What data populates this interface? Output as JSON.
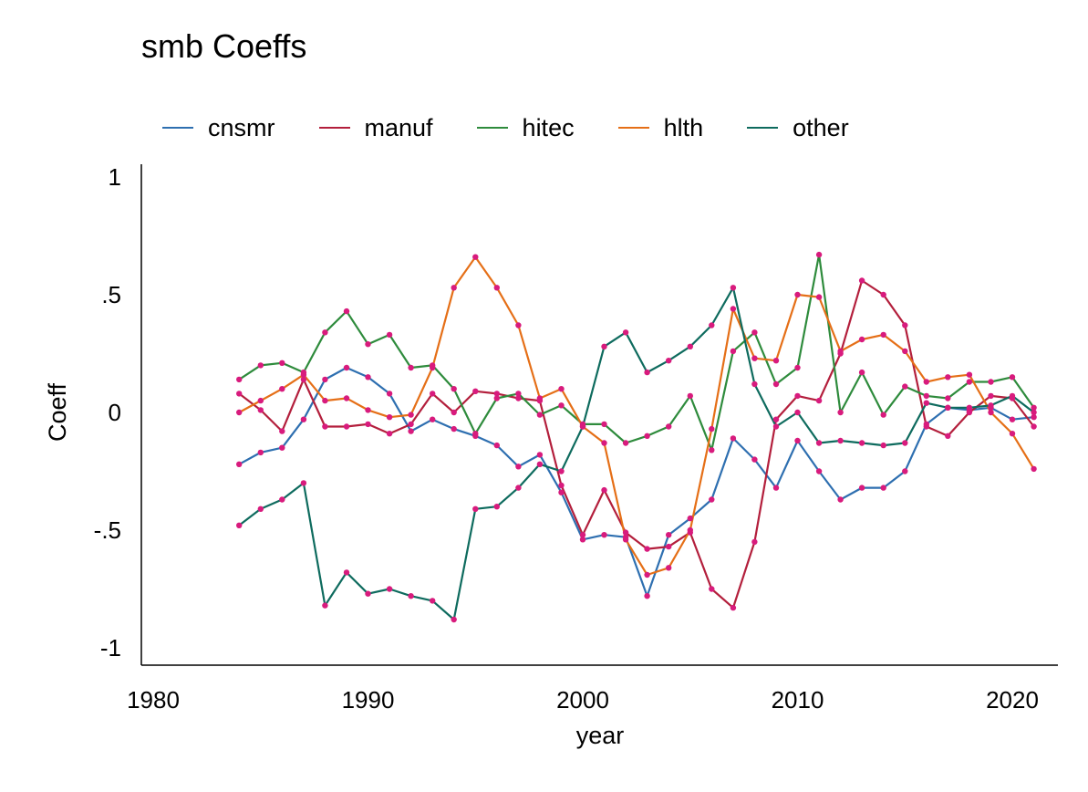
{
  "chart_data": {
    "type": "line",
    "title": "smb Coeffs",
    "xlabel": "year",
    "ylabel": "Coeff",
    "xlim": [
      1980,
      2021
    ],
    "ylim": [
      -1,
      1
    ],
    "x_ticks": [
      1980,
      1990,
      2000,
      2010,
      2020
    ],
    "y_ticks": [
      {
        "value": 1,
        "label": "1"
      },
      {
        "value": 0.5,
        "label": ".5"
      },
      {
        "value": 0,
        "label": "0"
      },
      {
        "value": -0.5,
        "label": "-.5"
      },
      {
        "value": -1,
        "label": "-1"
      }
    ],
    "legend_position": "top",
    "marker_color": "#d81b7d",
    "grid": false,
    "x": [
      1984,
      1985,
      1986,
      1987,
      1988,
      1989,
      1990,
      1991,
      1992,
      1993,
      1994,
      1995,
      1996,
      1997,
      1998,
      1999,
      2000,
      2001,
      2002,
      2003,
      2004,
      2005,
      2006,
      2007,
      2008,
      2009,
      2010,
      2011,
      2012,
      2013,
      2014,
      2015,
      2016,
      2017,
      2018,
      2019,
      2020,
      2021
    ],
    "series": [
      {
        "name": "cnsmr",
        "color": "#2e6fb0",
        "values": [
          -0.22,
          -0.17,
          -0.15,
          -0.03,
          0.14,
          0.19,
          0.15,
          0.08,
          -0.08,
          -0.03,
          -0.07,
          -0.1,
          -0.14,
          -0.23,
          -0.18,
          -0.34,
          -0.54,
          -0.52,
          -0.53,
          -0.78,
          -0.52,
          -0.45,
          -0.37,
          -0.11,
          -0.2,
          -0.32,
          -0.12,
          -0.25,
          -0.37,
          -0.32,
          -0.32,
          -0.25,
          -0.05,
          0.02,
          0.01,
          0.02,
          -0.03,
          -0.02
        ]
      },
      {
        "name": "manuf",
        "color": "#b31f3c",
        "values": [
          0.08,
          0.01,
          -0.08,
          0.14,
          -0.06,
          -0.06,
          -0.05,
          -0.09,
          -0.05,
          0.08,
          0.0,
          0.09,
          0.08,
          0.06,
          0.05,
          -0.31,
          -0.52,
          -0.33,
          -0.51,
          -0.58,
          -0.57,
          -0.51,
          -0.75,
          -0.83,
          -0.55,
          -0.03,
          0.07,
          0.05,
          0.25,
          0.56,
          0.5,
          0.37,
          -0.06,
          -0.1,
          0.0,
          0.07,
          0.06,
          -0.06
        ]
      },
      {
        "name": "hitec",
        "color": "#2e8b3c",
        "values": [
          0.14,
          0.2,
          0.21,
          0.17,
          0.34,
          0.43,
          0.29,
          0.33,
          0.19,
          0.2,
          0.1,
          -0.09,
          0.06,
          0.08,
          -0.01,
          0.03,
          -0.05,
          -0.05,
          -0.13,
          -0.1,
          -0.06,
          0.07,
          -0.16,
          0.26,
          0.34,
          0.12,
          0.19,
          0.67,
          0.0,
          0.17,
          -0.01,
          0.11,
          0.07,
          0.06,
          0.13,
          0.13,
          0.15,
          0.02
        ]
      },
      {
        "name": "hlth",
        "color": "#e56f17",
        "values": [
          0.0,
          0.05,
          0.1,
          0.16,
          0.05,
          0.06,
          0.01,
          -0.02,
          -0.01,
          0.19,
          0.53,
          0.66,
          0.53,
          0.37,
          0.06,
          0.1,
          -0.06,
          -0.13,
          -0.54,
          -0.69,
          -0.66,
          -0.5,
          -0.07,
          0.44,
          0.23,
          0.22,
          0.5,
          0.49,
          0.26,
          0.31,
          0.33,
          0.26,
          0.13,
          0.15,
          0.16,
          0.0,
          -0.09,
          -0.24
        ]
      },
      {
        "name": "other",
        "color": "#0e6b5e",
        "values": [
          -0.48,
          -0.41,
          -0.37,
          -0.3,
          -0.82,
          -0.68,
          -0.77,
          -0.75,
          -0.78,
          -0.8,
          -0.88,
          -0.41,
          -0.4,
          -0.32,
          -0.22,
          -0.25,
          -0.06,
          0.28,
          0.34,
          0.17,
          0.22,
          0.28,
          0.37,
          0.53,
          0.12,
          -0.06,
          0.0,
          -0.13,
          -0.12,
          -0.13,
          -0.14,
          -0.13,
          0.04,
          0.02,
          0.02,
          0.03,
          0.07,
          0.0
        ]
      }
    ]
  }
}
